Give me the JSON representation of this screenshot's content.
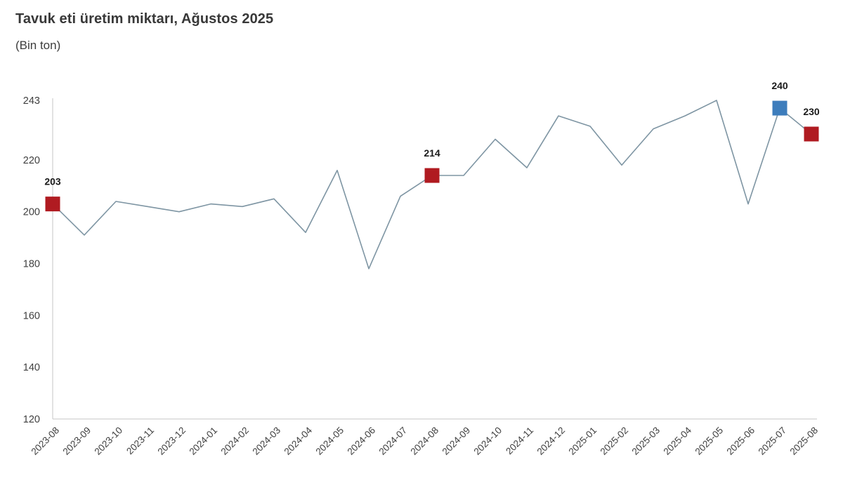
{
  "title": "Tavuk eti üretim miktarı, Ağustos 2025",
  "subtitle": "(Bin ton)",
  "chart_data": {
    "type": "line",
    "title": "Tavuk eti üretim miktarı, Ağustos 2025",
    "subtitle": "(Bin ton)",
    "xlabel": "",
    "ylabel": "",
    "x": [
      "2023-08",
      "2023-09",
      "2023-10",
      "2023-11",
      "2023-12",
      "2024-01",
      "2024-02",
      "2024-03",
      "2024-04",
      "2024-05",
      "2024-06",
      "2024-07",
      "2024-08",
      "2024-09",
      "2024-10",
      "2024-11",
      "2024-12",
      "2025-01",
      "2025-02",
      "2025-03",
      "2025-04",
      "2025-05",
      "2025-06",
      "2025-07",
      "2025-08"
    ],
    "series": [
      {
        "name": "Tavuk eti üretim miktarı (Bin ton)",
        "values": [
          203,
          191,
          204,
          202,
          200,
          203,
          202,
          205,
          192,
          216,
          178,
          206,
          214,
          214,
          228,
          217,
          237,
          233,
          218,
          232,
          237,
          243,
          203,
          240,
          230
        ]
      }
    ],
    "ylim": [
      120,
      243
    ],
    "yticks": [
      120,
      140,
      160,
      180,
      200,
      220,
      243
    ],
    "grid": false,
    "legend_position": "none",
    "highlighted_points": [
      {
        "index": 0,
        "x": "2023-08",
        "value": 203,
        "label": "203",
        "marker": "square",
        "color": "#b01b21"
      },
      {
        "index": 12,
        "x": "2024-08",
        "value": 214,
        "label": "214",
        "marker": "square",
        "color": "#b01b21"
      },
      {
        "index": 23,
        "x": "2025-07",
        "value": 240,
        "label": "240",
        "marker": "square",
        "color": "#3d7dbc"
      },
      {
        "index": 24,
        "x": "2025-08",
        "value": 230,
        "label": "230",
        "marker": "square",
        "color": "#b01b21"
      }
    ],
    "colors": {
      "line": "#7e95a3",
      "axis": "#c6c6c6",
      "tick_text": "#3f3f3f",
      "point_label_text": "#1a1a1a",
      "highlight_red": "#b01b21",
      "highlight_blue": "#3d7dbc",
      "background": "#ffffff"
    }
  }
}
